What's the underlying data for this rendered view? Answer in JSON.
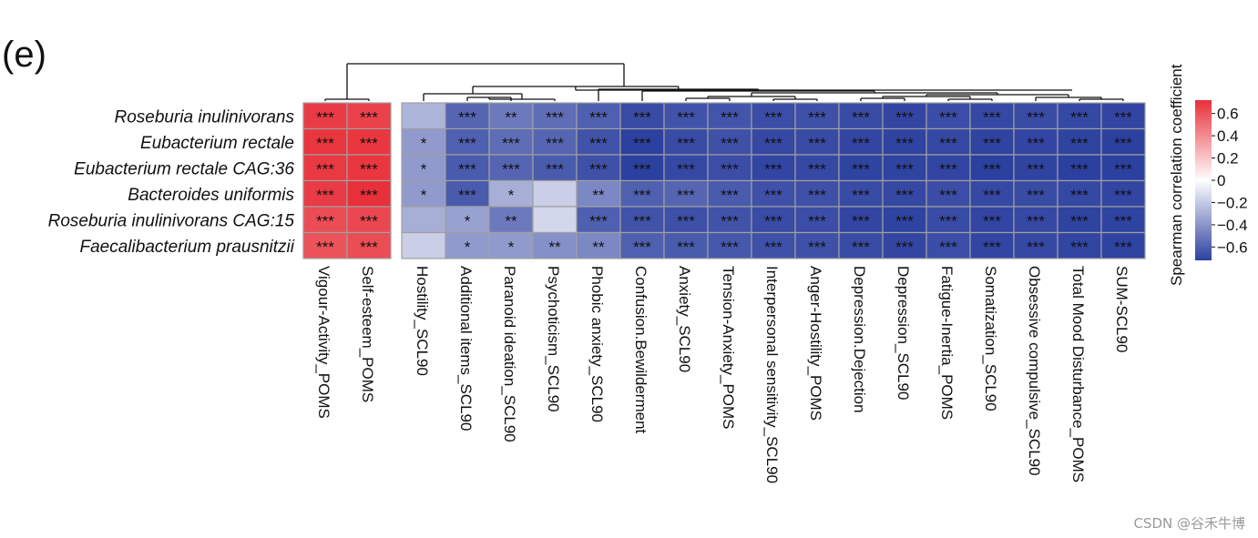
{
  "panel_label": "(e)",
  "watermark": "CSDN @谷禾牛博",
  "chart_data": {
    "type": "heatmap",
    "title": "",
    "rows": [
      "Roseburia inulinivorans",
      "Eubacterium rectale",
      "Eubacterium rectale CAG:36",
      "Bacteroides uniformis",
      "Roseburia inulinivorans CAG:15",
      "Faecalibacterium prausnitzii"
    ],
    "columns": [
      "Vigour-Activity_POMS",
      "Self-esteem_POMS",
      "Hostility_SCL90",
      "Additional items_SCL90",
      "Paranoid ideation_SCL90",
      "Psychoticism_SCL90",
      "Phobic anxiety_SCL90",
      "Confusion.Bewilderment",
      "Anxiety_SCL90",
      "Tension-Anxiety_POMS",
      "Interpersonal sensitivity_SCL90",
      "Anger-Hostility_POMS",
      "Depression.Dejection",
      "Depression_SCL90",
      "Fatigue-Inertia_POMS",
      "Somatization_SCL90",
      "Obsessive compulsive_SCL90",
      "Total Mood Disturbance_POMS",
      "SUM-SCL90"
    ],
    "values": [
      [
        0.68,
        0.66,
        -0.28,
        -0.58,
        -0.5,
        -0.55,
        -0.6,
        -0.68,
        -0.65,
        -0.64,
        -0.67,
        -0.66,
        -0.68,
        -0.7,
        -0.67,
        -0.69,
        -0.68,
        -0.69,
        -0.7
      ],
      [
        0.7,
        0.7,
        -0.38,
        -0.6,
        -0.55,
        -0.58,
        -0.65,
        -0.72,
        -0.68,
        -0.66,
        -0.69,
        -0.68,
        -0.7,
        -0.71,
        -0.69,
        -0.71,
        -0.7,
        -0.71,
        -0.72
      ],
      [
        0.69,
        0.7,
        -0.38,
        -0.62,
        -0.58,
        -0.62,
        -0.66,
        -0.74,
        -0.69,
        -0.67,
        -0.7,
        -0.69,
        -0.71,
        -0.71,
        -0.7,
        -0.72,
        -0.71,
        -0.72,
        -0.72
      ],
      [
        0.68,
        0.72,
        -0.38,
        -0.62,
        -0.3,
        -0.18,
        -0.45,
        -0.6,
        -0.58,
        -0.62,
        -0.66,
        -0.66,
        -0.68,
        -0.69,
        -0.67,
        -0.69,
        -0.68,
        -0.69,
        -0.7
      ],
      [
        0.62,
        0.64,
        -0.3,
        -0.35,
        -0.5,
        -0.15,
        -0.6,
        -0.65,
        -0.66,
        -0.65,
        -0.68,
        -0.67,
        -0.7,
        -0.71,
        -0.68,
        -0.7,
        -0.69,
        -0.71,
        -0.71
      ],
      [
        0.6,
        0.62,
        -0.18,
        -0.38,
        -0.38,
        -0.42,
        -0.45,
        -0.6,
        -0.62,
        -0.63,
        -0.66,
        -0.66,
        -0.68,
        -0.7,
        -0.67,
        -0.7,
        -0.69,
        -0.7,
        -0.71
      ]
    ],
    "significance": [
      [
        "***",
        "***",
        "",
        "***",
        "**",
        "***",
        "***",
        "***",
        "***",
        "***",
        "***",
        "***",
        "***",
        "***",
        "***",
        "***",
        "***",
        "***",
        "***"
      ],
      [
        "***",
        "***",
        "*",
        "***",
        "***",
        "***",
        "***",
        "***",
        "***",
        "***",
        "***",
        "***",
        "***",
        "***",
        "***",
        "***",
        "***",
        "***",
        "***"
      ],
      [
        "***",
        "***",
        "*",
        "***",
        "***",
        "***",
        "***",
        "***",
        "***",
        "***",
        "***",
        "***",
        "***",
        "***",
        "***",
        "***",
        "***",
        "***",
        "***"
      ],
      [
        "***",
        "***",
        "*",
        "***",
        "*",
        "",
        "**",
        "***",
        "***",
        "***",
        "***",
        "***",
        "***",
        "***",
        "***",
        "***",
        "***",
        "***",
        "***"
      ],
      [
        "***",
        "***",
        "",
        "*",
        "**",
        "",
        "***",
        "***",
        "***",
        "***",
        "***",
        "***",
        "***",
        "***",
        "***",
        "***",
        "***",
        "***",
        "***"
      ],
      [
        "***",
        "***",
        "",
        "*",
        "*",
        "**",
        "**",
        "***",
        "***",
        "***",
        "***",
        "***",
        "***",
        "***",
        "***",
        "***",
        "***",
        "***",
        "***"
      ]
    ],
    "column_groups": [
      2,
      17
    ],
    "legend": {
      "title": "Spearman correlation coefficient",
      "ticks": [
        0.6,
        0.4,
        0.2,
        0,
        -0.2,
        -0.4,
        -0.6
      ],
      "tick_labels": [
        "0.6",
        "0.4",
        "0.2",
        "0",
        "−0.2",
        "−0.4",
        "−0.6"
      ],
      "range": [
        -0.72,
        0.72
      ],
      "colors": {
        "low": "#2c40a0",
        "mid": "#ffffff",
        "high": "#e8303a"
      },
      "placement": "right"
    },
    "grid_color": "#a0a0a0"
  }
}
